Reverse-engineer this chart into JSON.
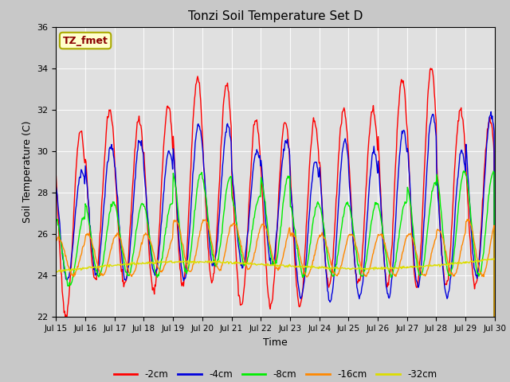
{
  "title": "Tonzi Soil Temperature Set D",
  "xlabel": "Time",
  "ylabel": "Soil Temperature (C)",
  "ylim": [
    22,
    36
  ],
  "xlim": [
    0,
    360
  ],
  "fig_facecolor": "#c8c8c8",
  "ax_facecolor": "#e0e0e0",
  "annotation_text": "TZ_fmet",
  "annotation_color": "#8b0000",
  "annotation_bg": "#ffffcc",
  "annotation_border": "#aaaa00",
  "legend_entries": [
    "-2cm",
    "-4cm",
    "-8cm",
    "-16cm",
    "-32cm"
  ],
  "line_colors": [
    "#ff0000",
    "#0000dd",
    "#00ee00",
    "#ff8800",
    "#dddd00"
  ],
  "tick_labels": [
    "Jul 15",
    "Jul 16",
    "Jul 17",
    "Jul 18",
    "Jul 19",
    "Jul 20",
    "Jul 21",
    "Jul 22",
    "Jul 23",
    "Jul 24",
    "Jul 25",
    "Jul 26",
    "Jul 27",
    "Jul 28",
    "Jul 29",
    "Jul 30"
  ],
  "tick_positions": [
    0,
    24,
    48,
    72,
    96,
    120,
    144,
    168,
    192,
    216,
    240,
    264,
    288,
    312,
    336,
    360
  ]
}
